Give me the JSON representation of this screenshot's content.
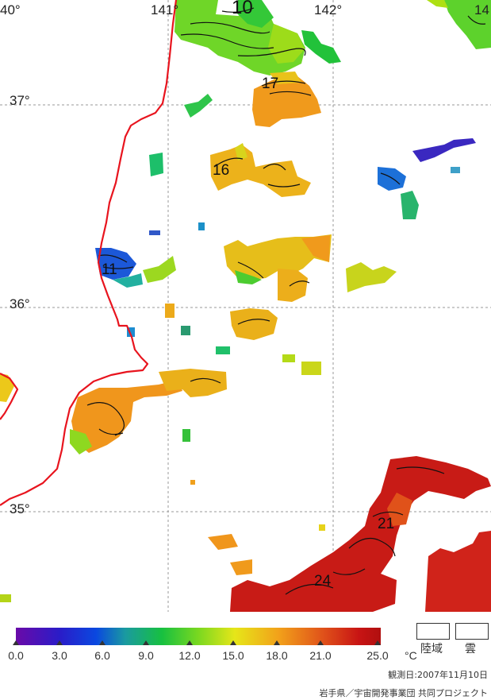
{
  "longitude_labels": [
    "40°",
    "141°",
    "142°",
    "14"
  ],
  "latitude_labels": [
    "37°",
    "36°",
    "35°"
  ],
  "isotherm_labels": [
    "10",
    "17",
    "16",
    "11",
    "21",
    "24"
  ],
  "legend": {
    "ticks": [
      "0.0",
      "3.0",
      "6.0",
      "9.0",
      "12.0",
      "15.0",
      "18.0",
      "21.0",
      "25.0"
    ],
    "unit": "°C",
    "land_label": "陸域",
    "cloud_label": "雲"
  },
  "observation_date": "観測日:2007年11月10日",
  "credit": "岩手県／宇宙開発事業団 共同プロジェクト",
  "colors": {
    "coastline": "#e8141e",
    "grid": "#999999",
    "background": "#ffffff"
  }
}
